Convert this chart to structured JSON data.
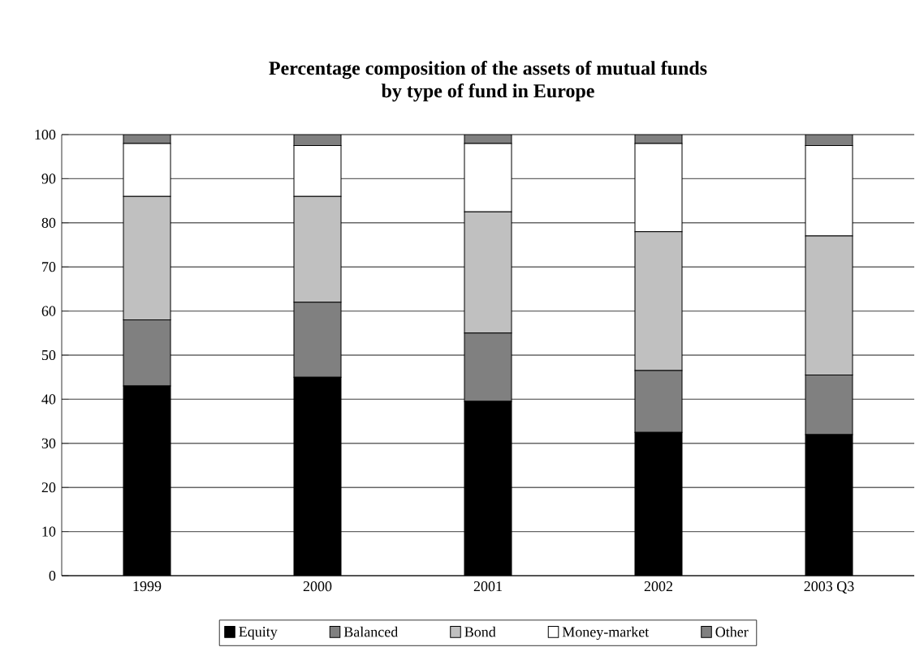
{
  "chart_data": {
    "type": "bar",
    "stacked": true,
    "title": "Percentage composition of the assets of mutual funds\nby type of fund in Europe",
    "categories": [
      "1999",
      "2000",
      "2001",
      "2002",
      "2003 Q3"
    ],
    "series": [
      {
        "name": "Equity",
        "color": "#000000",
        "values": [
          43,
          45,
          39.5,
          32.5,
          32
        ]
      },
      {
        "name": "Balanced",
        "color": "#808080",
        "values": [
          15,
          17,
          15.5,
          14,
          13.5
        ]
      },
      {
        "name": "Bond",
        "color": "#c0c0c0",
        "values": [
          28,
          24,
          27.5,
          31.5,
          31.5
        ]
      },
      {
        "name": "Money-market",
        "color": "#ffffff",
        "values": [
          12,
          11.5,
          15.5,
          20,
          20.5
        ]
      },
      {
        "name": "Other",
        "color": "#808080",
        "values": [
          2,
          2.5,
          2,
          2,
          2.5
        ]
      }
    ],
    "ylim": [
      0,
      100
    ],
    "yticks": [
      0,
      10,
      20,
      30,
      40,
      50,
      60,
      70,
      80,
      90,
      100
    ],
    "grid": "y",
    "legend": "bottom"
  }
}
